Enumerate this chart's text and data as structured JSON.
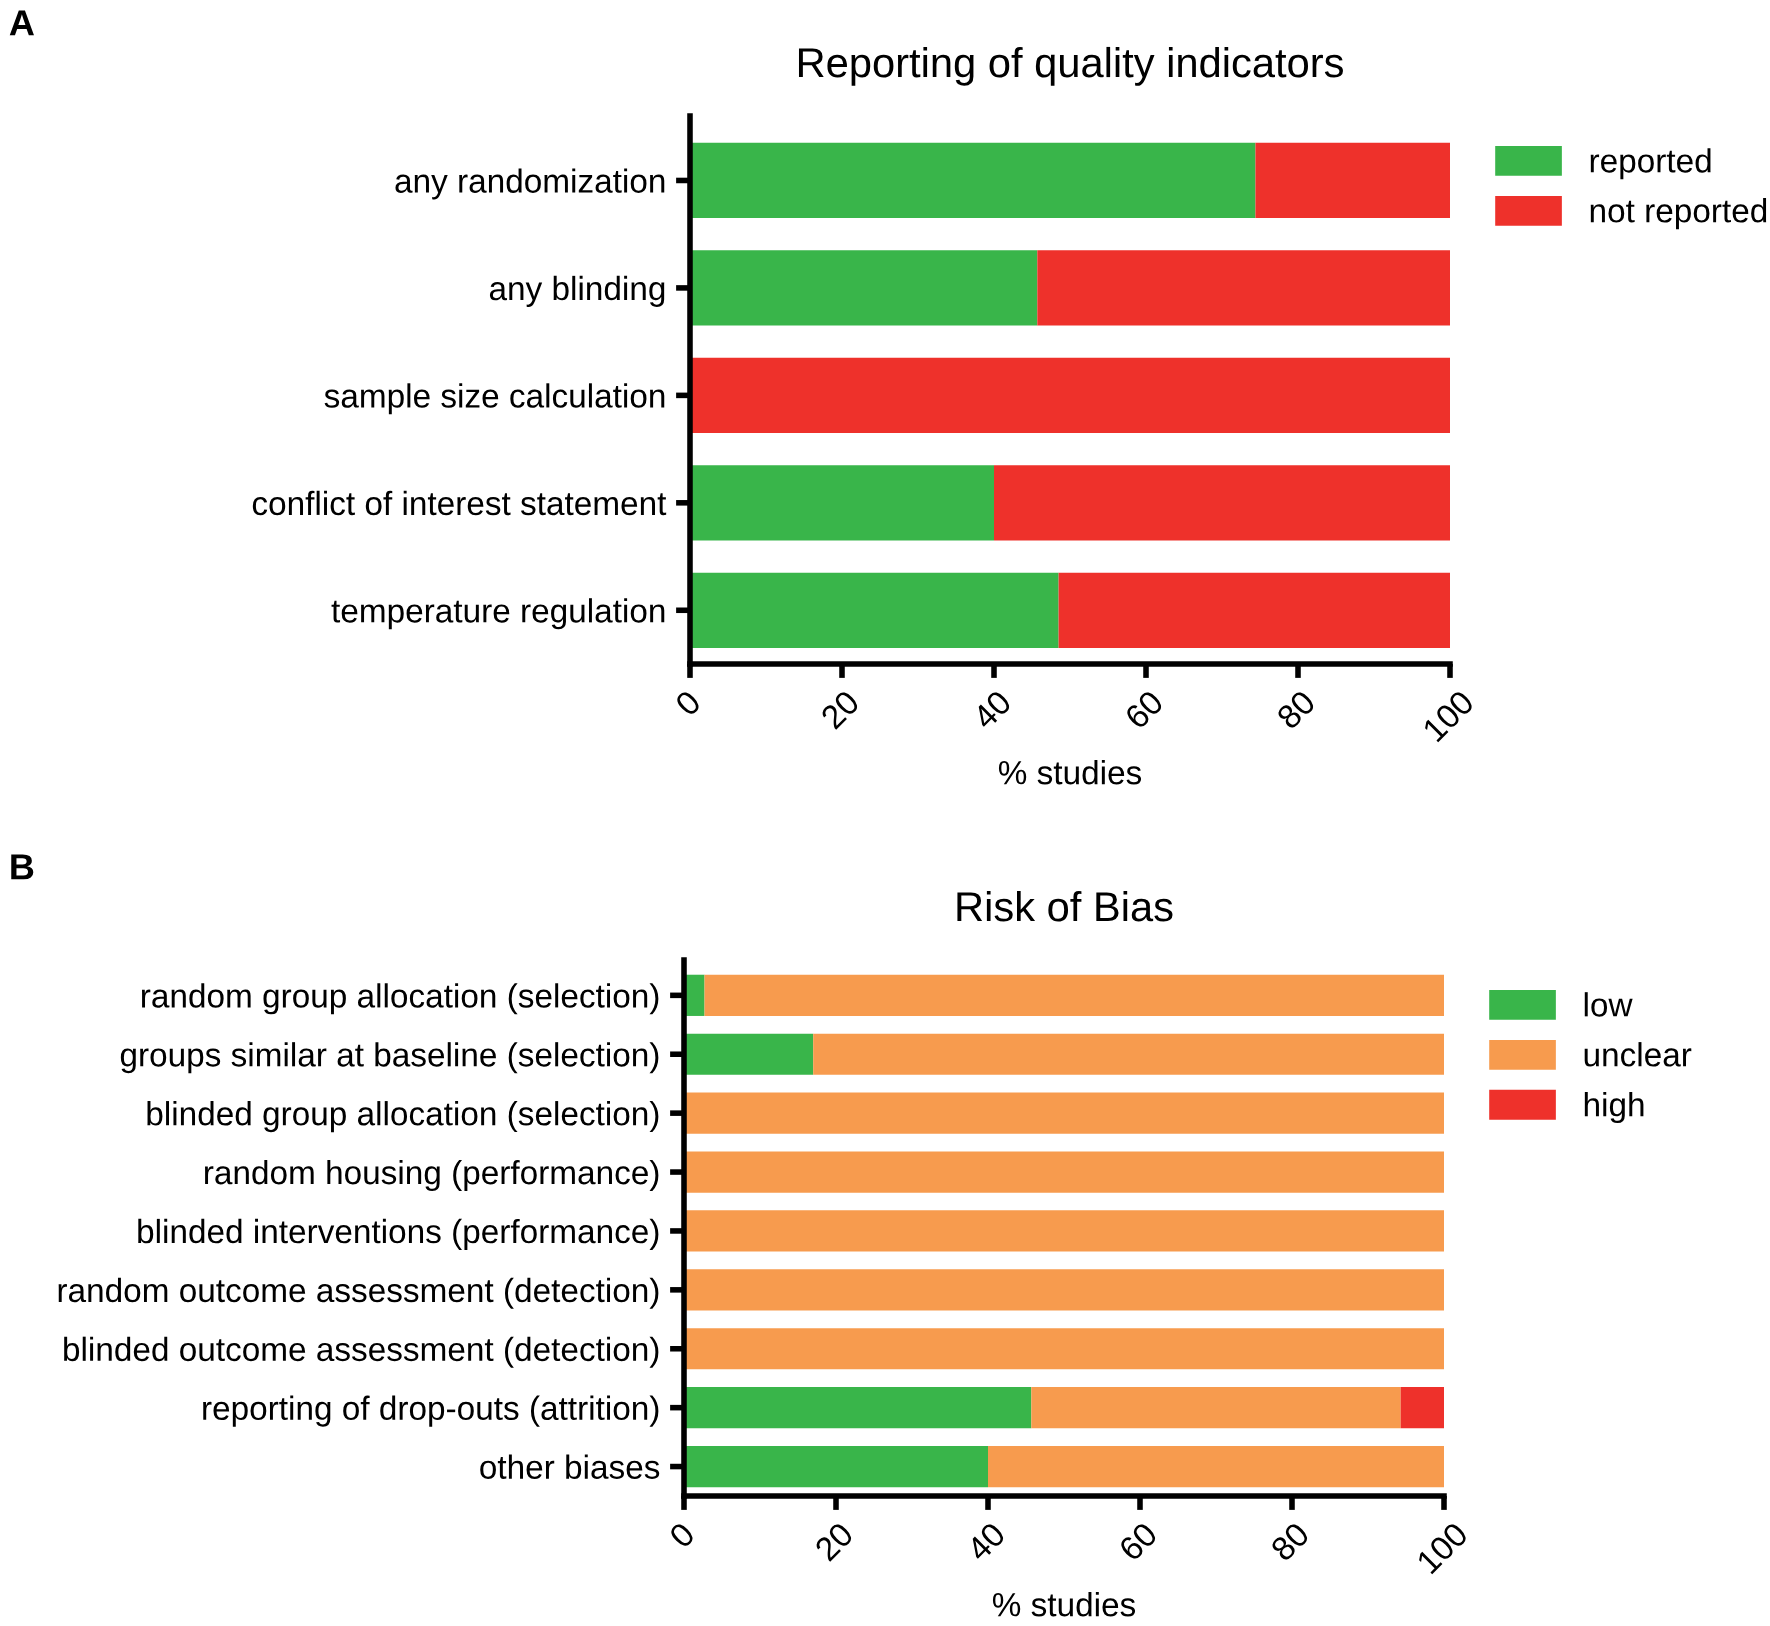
{
  "chart_data": [
    {
      "type": "bar",
      "orientation": "horizontal",
      "stacked": true,
      "title": "Reporting of quality indicators",
      "xlabel": "% studies",
      "annotations": [
        "A"
      ],
      "categories": [
        "any randomization",
        "any blinding",
        "sample size calculation",
        "conflict of interest statement",
        "temperature regulation"
      ],
      "series": [
        {
          "name": "reported",
          "color": "#39b54a",
          "values": [
            74.4,
            45.7,
            0,
            40.0,
            48.5
          ]
        },
        {
          "name": "not reported",
          "color": "#ee312b",
          "values": [
            25.6,
            54.3,
            100,
            60.0,
            51.5
          ]
        }
      ],
      "xlim": [
        0,
        100
      ],
      "xticks": [
        0,
        20,
        40,
        60,
        80,
        100
      ],
      "grid": false,
      "legend": "top right"
    },
    {
      "type": "bar",
      "orientation": "horizontal",
      "stacked": true,
      "title": "Risk of Bias",
      "xlabel": "% studies",
      "annotations": [
        "B"
      ],
      "categories": [
        "random group allocation (selection)",
        "groups similar at baseline (selection)",
        "blinded group allocation (selection)",
        "random housing (performance)",
        "blinded interventions (performance)",
        "random outcome assessment (detection)",
        "blinded outcome assessment (detection)",
        "reporting of drop-outs (attrition)",
        "other biases"
      ],
      "series": [
        {
          "name": "low",
          "color": "#39b54a",
          "values": [
            2.7,
            17.0,
            0,
            0,
            0,
            0,
            0,
            45.7,
            40.0
          ]
        },
        {
          "name": "unclear",
          "color": "#f79b4e",
          "values": [
            97.3,
            83.0,
            100,
            100,
            100,
            100,
            100,
            48.6,
            60.0
          ]
        },
        {
          "name": "high",
          "color": "#ee312b",
          "values": [
            0,
            0,
            0,
            0,
            0,
            0,
            0,
            5.7,
            0
          ]
        }
      ],
      "xlim": [
        0,
        100
      ],
      "xticks": [
        0,
        20,
        40,
        60,
        80,
        100
      ],
      "grid": false,
      "legend": "top right"
    }
  ]
}
